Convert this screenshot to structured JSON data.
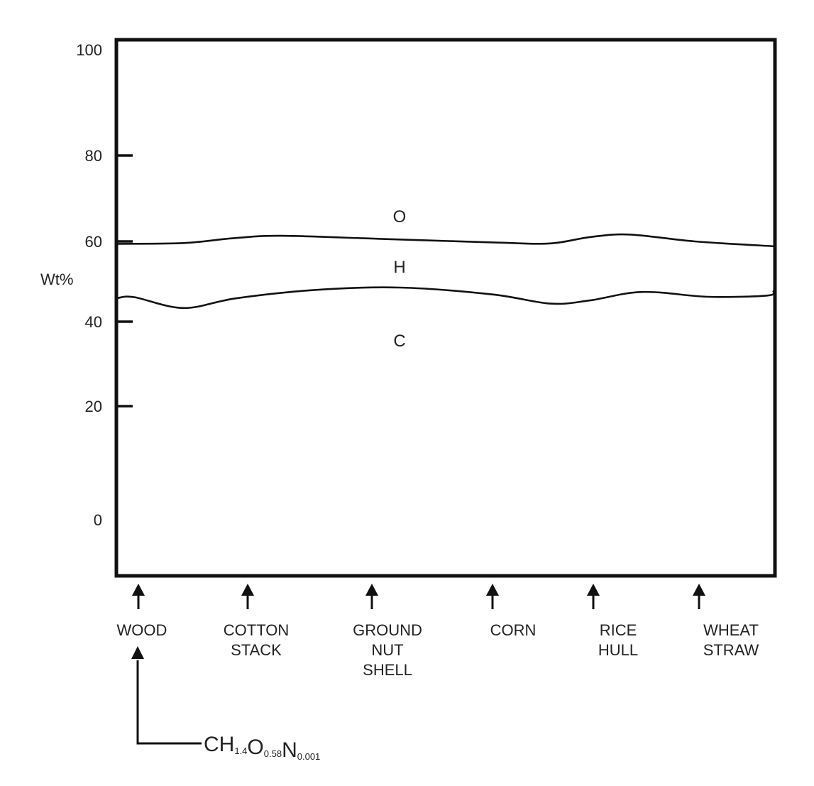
{
  "chart_data": {
    "type": "area",
    "ylabel": "Wt%",
    "y_ticks": [
      "100",
      "80",
      "60",
      "40",
      "20",
      "0"
    ],
    "categories": [
      [
        "WOOD"
      ],
      [
        "COTTON",
        "STACK"
      ],
      [
        "GROUND",
        "NUT",
        "SHELL"
      ],
      [
        "CORN"
      ],
      [
        "RICE",
        "HULL"
      ],
      [
        "WHEAT",
        "STRAW"
      ]
    ],
    "regions": [
      "O",
      "H",
      "C"
    ],
    "boundaries": [
      {
        "name": "upper",
        "points": [
          [
            0.0,
            59.4
          ],
          [
            0.1,
            59.6
          ],
          [
            0.18,
            60.8
          ],
          [
            0.25,
            61.3
          ],
          [
            0.4,
            60.6
          ],
          [
            0.58,
            59.7
          ],
          [
            0.66,
            59.5
          ],
          [
            0.72,
            61.0
          ],
          [
            0.78,
            61.6
          ],
          [
            0.88,
            60.0
          ],
          [
            1.0,
            58.8
          ]
        ]
      },
      {
        "name": "lower",
        "points": [
          [
            0.0,
            45.9
          ],
          [
            0.025,
            46.1
          ],
          [
            0.1,
            43.4
          ],
          [
            0.18,
            45.8
          ],
          [
            0.3,
            47.9
          ],
          [
            0.43,
            48.5
          ],
          [
            0.57,
            46.8
          ],
          [
            0.66,
            44.5
          ],
          [
            0.72,
            45.3
          ],
          [
            0.8,
            47.4
          ],
          [
            0.9,
            46.2
          ],
          [
            0.99,
            46.5
          ],
          [
            1.0,
            47.6
          ]
        ]
      }
    ],
    "annotation": {
      "target": "WOOD",
      "formula": [
        {
          "text": "CH",
          "sub": "1.4"
        },
        {
          "text": "O",
          "sub": "0.58"
        },
        {
          "text": "N",
          "sub": "0.001"
        }
      ]
    },
    "grid": false,
    "legend": "none"
  }
}
